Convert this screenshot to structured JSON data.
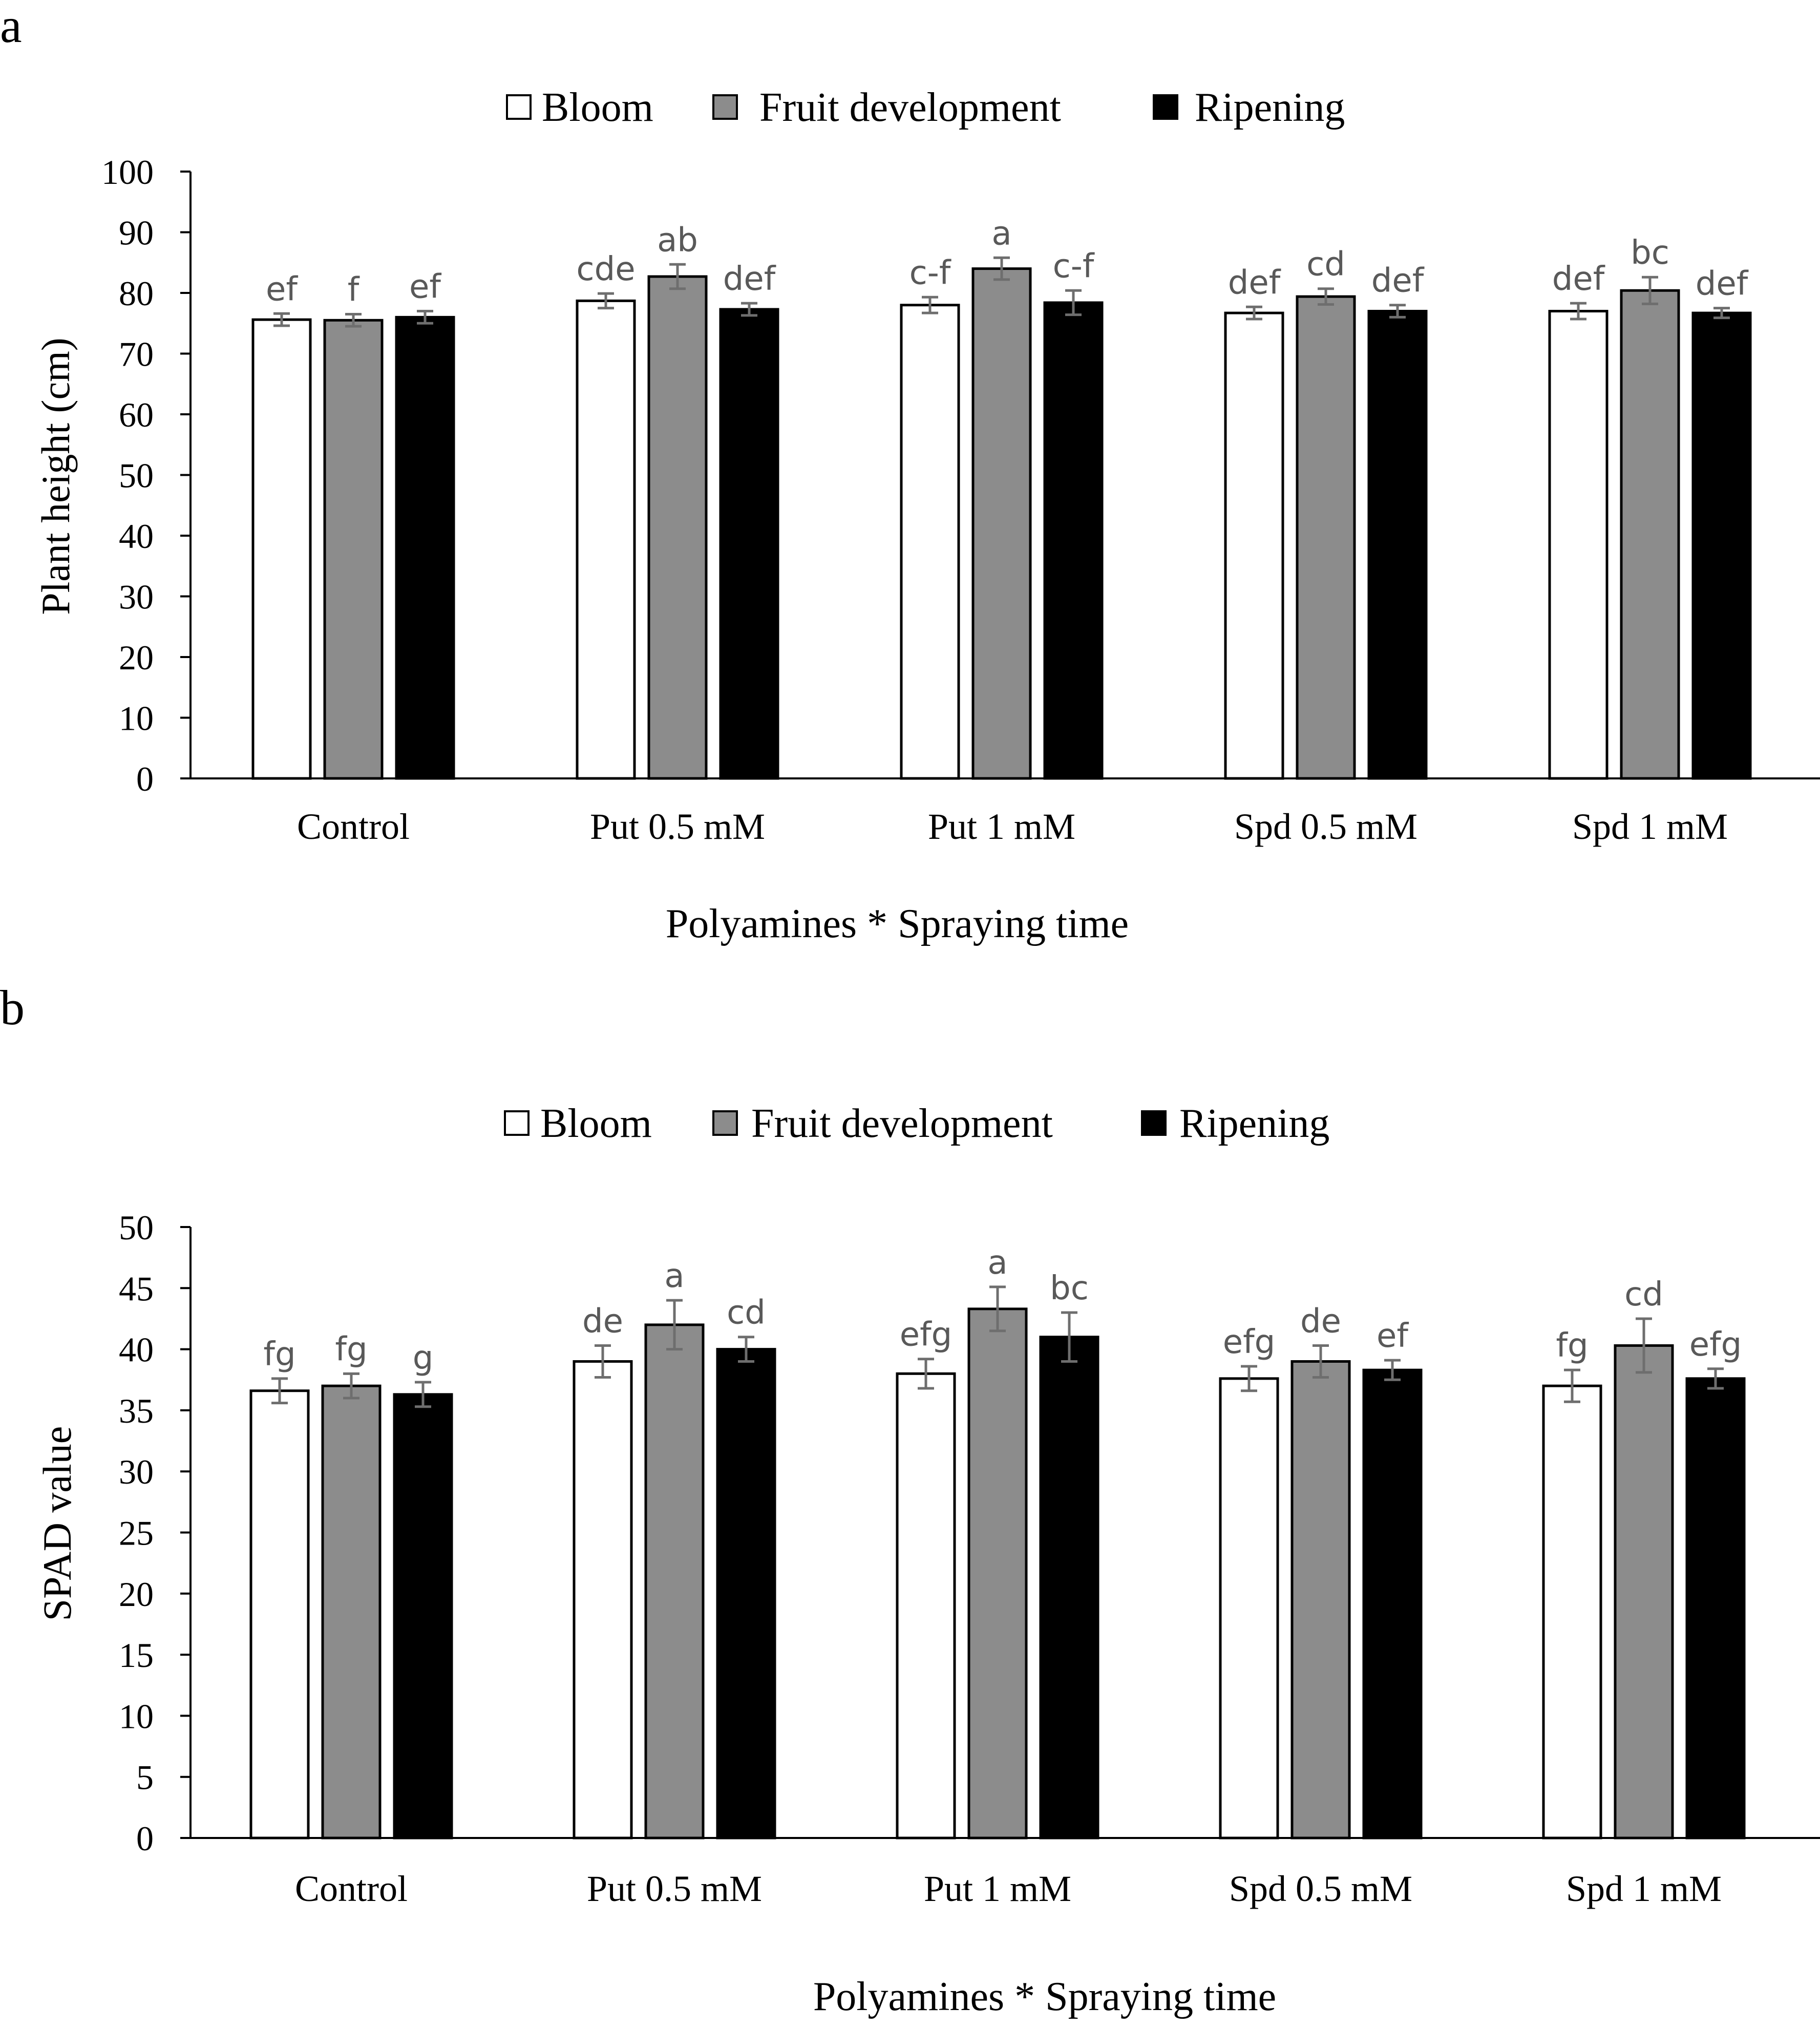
{
  "colors": {
    "bloom": "#ffffff",
    "fruit_development": "#8c8c8c",
    "ripening": "#000000",
    "error_bar": "#6e6e6e",
    "significance_label": "#595959"
  },
  "chart_data": [
    {
      "panel_label": "a",
      "type": "bar",
      "title": "",
      "xlabel": "Polyamines * Spraying time",
      "ylabel": "Plant height (cm)",
      "ylim": [
        0,
        100
      ],
      "yticks": [
        "0",
        "10",
        "20",
        "30",
        "40",
        "50",
        "60",
        "70",
        "80",
        "90",
        "100"
      ],
      "grid": false,
      "legend": "top-center",
      "categories": [
        "Control",
        "Put 0.5 mM",
        "Put 1 mM",
        "Spd 0.5 mM",
        "Spd 1 mM"
      ],
      "series": [
        {
          "name": "Bloom",
          "color_key": "bloom",
          "values": [
            75.6,
            78.7,
            78.0,
            76.7,
            77.0
          ],
          "errors": [
            1.0,
            1.2,
            1.3,
            1.0,
            1.3
          ],
          "labels": [
            "ef",
            "cde",
            "c-f",
            "def",
            "def"
          ]
        },
        {
          "name": "Fruit development",
          "color_key": "fruit_development",
          "values": [
            75.5,
            82.7,
            84.0,
            79.4,
            80.4
          ],
          "errors": [
            1.0,
            2.0,
            1.8,
            1.3,
            2.2
          ],
          "labels": [
            "f",
            "ab",
            "a",
            "cd",
            "bc"
          ]
        },
        {
          "name": "Ripening",
          "color_key": "ripening",
          "values": [
            76.0,
            77.3,
            78.4,
            77.0,
            76.7
          ],
          "errors": [
            1.0,
            1.0,
            2.0,
            1.0,
            0.8
          ],
          "labels": [
            "ef",
            "def",
            "c-f",
            "def",
            "def"
          ]
        }
      ]
    },
    {
      "panel_label": "b",
      "type": "bar",
      "title": "",
      "xlabel": "Polyamines * Spraying time",
      "ylabel": "SPAD value",
      "ylim": [
        0,
        50
      ],
      "yticks": [
        "0",
        "5",
        "10",
        "15",
        "20",
        "25",
        "30",
        "35",
        "40",
        "45",
        "50"
      ],
      "grid": false,
      "legend": "top-center",
      "categories": [
        "Control",
        "Put 0.5 mM",
        "Put 1 mM",
        "Spd 0.5 mM",
        "Spd 1 mM"
      ],
      "series": [
        {
          "name": "Bloom",
          "color_key": "bloom",
          "values": [
            36.6,
            39.0,
            38.0,
            37.6,
            37.0
          ],
          "errors": [
            1.0,
            1.3,
            1.2,
            1.0,
            1.3
          ],
          "labels": [
            "fg",
            "de",
            "efg",
            "efg",
            "fg"
          ]
        },
        {
          "name": "Fruit development",
          "color_key": "fruit_development",
          "values": [
            37.0,
            42.0,
            43.3,
            39.0,
            40.3
          ],
          "errors": [
            1.0,
            2.0,
            1.8,
            1.3,
            2.2
          ],
          "labels": [
            "fg",
            "a",
            "a",
            "de",
            "cd"
          ]
        },
        {
          "name": "Ripening",
          "color_key": "ripening",
          "values": [
            36.3,
            40.0,
            41.0,
            38.3,
            37.6
          ],
          "errors": [
            1.0,
            1.0,
            2.0,
            0.8,
            0.8
          ],
          "labels": [
            "g",
            "cd",
            "bc",
            "ef",
            "efg"
          ]
        }
      ]
    }
  ]
}
